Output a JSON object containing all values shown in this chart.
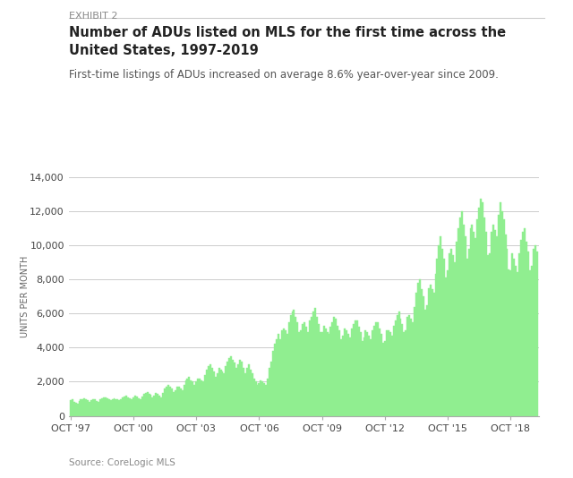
{
  "title": "Number of ADUs listed on MLS for the first time across the\nUnited States, 1997-2019",
  "exhibit": "EXHIBIT 2",
  "subtitle": "First-time listings of ADUs increased on average 8.6% year-over-year since 2009.",
  "source": "Source: CoreLogic MLS",
  "ylabel": "UNITS PER MONTH",
  "bar_color": "#90EE90",
  "bar_edge_color": "#7BC87B",
  "background_color": "#FFFFFF",
  "ylim": [
    0,
    14000
  ],
  "yticks": [
    0,
    2000,
    4000,
    6000,
    8000,
    10000,
    12000,
    14000
  ],
  "xtick_labels": [
    "OCT '97",
    "OCT '00",
    "OCT '03",
    "OCT '06",
    "OCT '09",
    "OCT '12",
    "OCT '15",
    "OCT '18"
  ],
  "monthly_data": [
    900,
    950,
    800,
    750,
    700,
    850,
    950,
    1000,
    1050,
    950,
    900,
    800,
    900,
    1000,
    950,
    850,
    800,
    950,
    1050,
    1100,
    1100,
    1050,
    1000,
    900,
    1000,
    1050,
    1000,
    950,
    900,
    1000,
    1100,
    1150,
    1200,
    1100,
    1050,
    950,
    1100,
    1200,
    1150,
    1050,
    1000,
    1150,
    1300,
    1350,
    1400,
    1300,
    1250,
    1100,
    1200,
    1350,
    1300,
    1200,
    1100,
    1350,
    1600,
    1700,
    1800,
    1700,
    1600,
    1400,
    1500,
    1700,
    1700,
    1600,
    1500,
    1800,
    2100,
    2200,
    2300,
    2100,
    2000,
    1800,
    2000,
    2200,
    2200,
    2100,
    2000,
    2400,
    2700,
    2900,
    3000,
    2800,
    2600,
    2300,
    2500,
    2800,
    2700,
    2600,
    2500,
    2900,
    3200,
    3400,
    3500,
    3300,
    3100,
    2800,
    3000,
    3300,
    3200,
    2800,
    2500,
    2800,
    3000,
    2700,
    2500,
    2200,
    2000,
    1800,
    1900,
    2100,
    2000,
    1900,
    1800,
    2200,
    2800,
    3200,
    3800,
    4200,
    4500,
    4800,
    4500,
    5000,
    5100,
    5000,
    4800,
    5500,
    5900,
    6100,
    6200,
    5800,
    5500,
    4900,
    5000,
    5400,
    5500,
    5200,
    4900,
    5600,
    5800,
    6100,
    6300,
    5800,
    5400,
    4900,
    4900,
    5300,
    5100,
    4900,
    4800,
    5200,
    5500,
    5800,
    5700,
    5300,
    5000,
    4500,
    4700,
    5100,
    5000,
    4800,
    4600,
    5100,
    5400,
    5600,
    5600,
    5200,
    4900,
    4400,
    4600,
    5000,
    4900,
    4700,
    4500,
    5000,
    5300,
    5500,
    5500,
    5100,
    4800,
    4300,
    4400,
    5000,
    5000,
    4900,
    4700,
    5300,
    5600,
    5900,
    6100,
    5700,
    5400,
    4900,
    5000,
    5800,
    5900,
    5700,
    5500,
    6400,
    7200,
    7800,
    8000,
    7400,
    7000,
    6200,
    6500,
    7500,
    7700,
    7400,
    7200,
    8300,
    9200,
    10000,
    10500,
    9800,
    9200,
    8100,
    8500,
    9500,
    9800,
    9400,
    9000,
    10200,
    11000,
    11600,
    12000,
    11200,
    10500,
    9200,
    9800,
    11000,
    11200,
    10800,
    10400,
    11500,
    12200,
    12700,
    12500,
    11600,
    10800,
    9400,
    9500,
    10800,
    11200,
    10900,
    10500,
    11800,
    12500,
    12000,
    11500,
    10600,
    9800,
    8600,
    8500,
    9500,
    9200,
    8800,
    8400,
    9500,
    10300,
    10800,
    11000,
    10200,
    9600,
    8500,
    8800,
    9800,
    10000,
    9600
  ]
}
